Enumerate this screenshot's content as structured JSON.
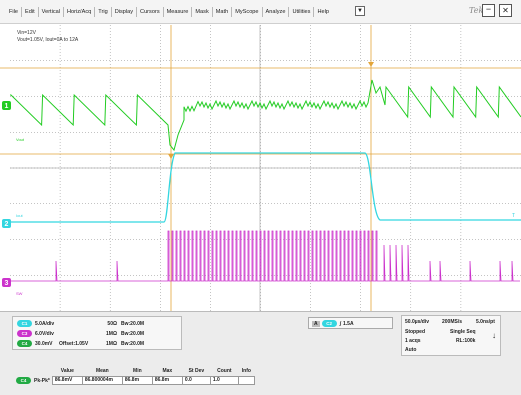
{
  "menu": {
    "items": [
      "File",
      "Edit",
      "Vertical",
      "Horiz/Acq",
      "Trig",
      "Display",
      "Cursors",
      "Measure",
      "Mask",
      "Math",
      "MyScope",
      "Analyze",
      "Utilities",
      "Help"
    ],
    "dropdown_glyph": "▼",
    "brand": "Tek",
    "minimize_glyph": "−",
    "close_glyph": "✕"
  },
  "annotation": {
    "line1": "Vin=12V",
    "line2": "Vout=1.05V, Iout=0A to 12A"
  },
  "markers": {
    "ch1_num": "1",
    "ch2_num": "2",
    "ch3_num": "3",
    "ch1_tag": "Vout",
    "ch2_tag": "Iout",
    "ch3_tag": "SW",
    "trigger_tag": "T"
  },
  "colors": {
    "ch1": "#22cc22",
    "ch2": "#33d6e0",
    "ch3": "#cc33cc",
    "ch4": "#22aa44",
    "cursor": "#e3a53a",
    "grid": "#8a8a8a",
    "background": "#ffffff"
  },
  "channels": [
    {
      "badge": "C1",
      "scale": "5.0A/div",
      "impedance": "50Ω",
      "bw": "Bw:20.0M",
      "offset": ""
    },
    {
      "badge": "C3",
      "scale": "6.0V/div",
      "impedance": "1MΩ",
      "bw": "Bw:20.0M",
      "offset": ""
    },
    {
      "badge": "C4",
      "scale": "30.0mV",
      "impedance": "1MΩ",
      "bw": "Bw:20.0M",
      "offset": "Offset:1.05V"
    }
  ],
  "trigger": {
    "badge": "C2",
    "letter": "A",
    "slope_glyph": "∫",
    "level": "1.5A"
  },
  "acquisition": {
    "timebase": "50.0µs/div",
    "rate": "200MS/s",
    "resolution": "5.0ns/pt",
    "state": "Stopped",
    "mode": "Single Seq",
    "acqs": "1 acqs",
    "record": "RL:100k",
    "auto": "Auto",
    "arrow": "↓"
  },
  "measurements": {
    "headers": [
      "Value",
      "Mean",
      "Min",
      "Max",
      "St Dev",
      "Count",
      "Info"
    ],
    "rows": [
      {
        "badge": "C4",
        "name": "Pk-Pk*",
        "values": [
          "86.8mV",
          "86.800004m",
          "86.8m",
          "86.8m",
          "0.0",
          "1.0",
          ""
        ]
      }
    ]
  }
}
